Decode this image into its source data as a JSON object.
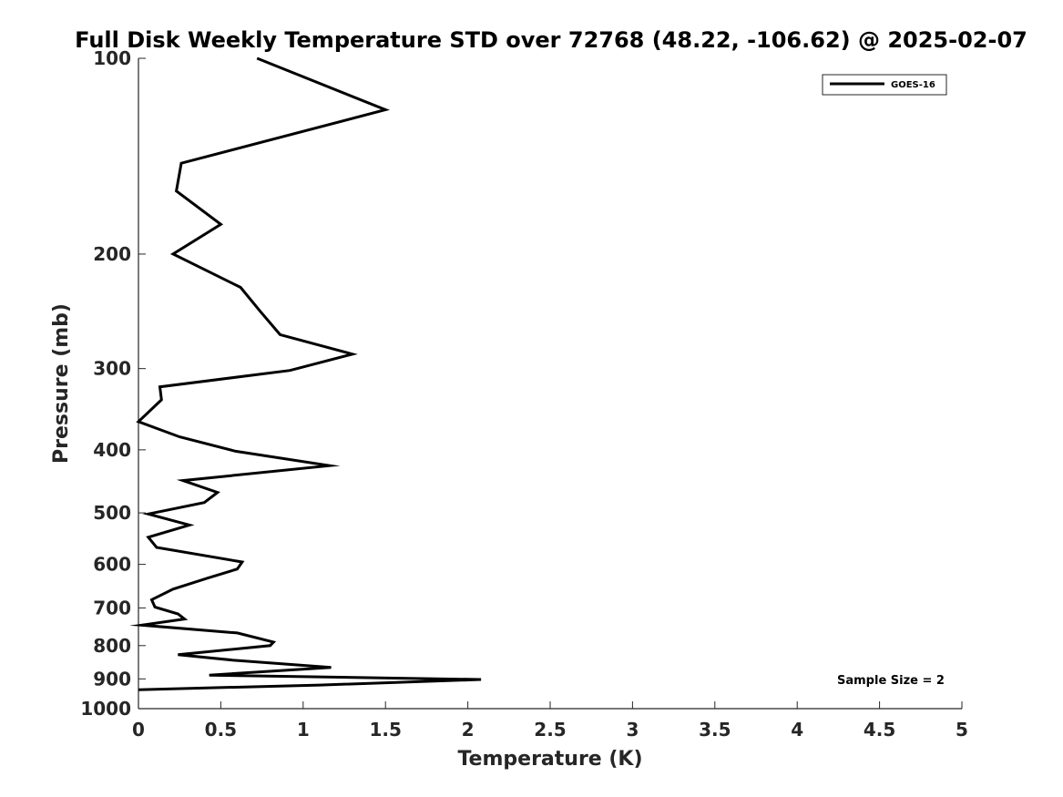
{
  "chart_data": {
    "type": "line",
    "title": "Full Disk Weekly Temperature STD over 72768 (48.22, -106.62) @ 2025-02-07",
    "xlabel": "Temperature (K)",
    "ylabel": "Pressure (mb)",
    "xlim": [
      0,
      5
    ],
    "ylim": [
      100,
      1000
    ],
    "yscale": "log",
    "y_reversed": true,
    "grid": false,
    "xticks": [
      0,
      0.5,
      1,
      1.5,
      2,
      2.5,
      3,
      3.5,
      4,
      4.5,
      5
    ],
    "xtick_labels": [
      "0",
      "0.5",
      "1",
      "1.5",
      "2",
      "2.5",
      "3",
      "3.5",
      "4",
      "4.5",
      "5"
    ],
    "yticks": [
      100,
      200,
      300,
      400,
      500,
      600,
      700,
      800,
      900,
      1000
    ],
    "ytick_labels": [
      "100",
      "200",
      "300",
      "400",
      "500",
      "600",
      "700",
      "800",
      "900",
      "1000"
    ],
    "legend_position": "top-right",
    "annotation": "Sample Size = 2",
    "series": [
      {
        "name": "GOES-16",
        "color": "#000000",
        "points": [
          [
            0.72,
            100
          ],
          [
            1.5,
            120
          ],
          [
            0.26,
            145
          ],
          [
            0.23,
            160
          ],
          [
            0.5,
            180
          ],
          [
            0.21,
            200
          ],
          [
            0.62,
            225
          ],
          [
            0.74,
            245
          ],
          [
            0.86,
            266
          ],
          [
            1.3,
            285
          ],
          [
            0.92,
            302
          ],
          [
            0.13,
            320
          ],
          [
            0.14,
            335
          ],
          [
            0.0,
            362
          ],
          [
            0.25,
            382
          ],
          [
            0.59,
            402
          ],
          [
            1.16,
            423
          ],
          [
            0.27,
            446
          ],
          [
            0.48,
            465
          ],
          [
            0.4,
            482
          ],
          [
            0.06,
            502
          ],
          [
            0.31,
            522
          ],
          [
            0.06,
            545
          ],
          [
            0.11,
            565
          ],
          [
            0.63,
            595
          ],
          [
            0.6,
            610
          ],
          [
            0.42,
            630
          ],
          [
            0.21,
            655
          ],
          [
            0.08,
            680
          ],
          [
            0.1,
            698
          ],
          [
            0.24,
            715
          ],
          [
            0.28,
            728
          ],
          [
            0.02,
            744
          ],
          [
            0.6,
            765
          ],
          [
            0.82,
            790
          ],
          [
            0.8,
            800
          ],
          [
            0.24,
            826
          ],
          [
            0.57,
            842
          ],
          [
            1.17,
            864
          ],
          [
            0.43,
            888
          ],
          [
            2.08,
            902
          ],
          [
            1.1,
            920
          ],
          [
            0.0,
            935
          ]
        ]
      }
    ]
  }
}
